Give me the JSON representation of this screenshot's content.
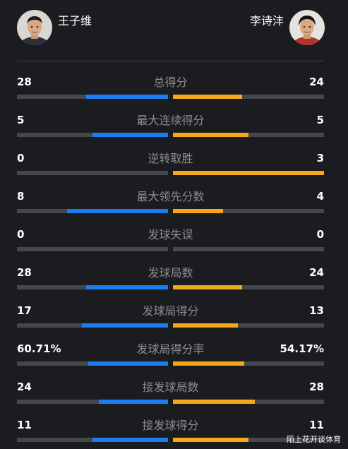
{
  "players": {
    "left": {
      "name": "王子维"
    },
    "right": {
      "name": "李诗沣"
    }
  },
  "colors": {
    "left_bar": "#1a7df2",
    "right_bar": "#f5a81c",
    "track": "#46474b",
    "background": "#1b1c1f"
  },
  "stats": [
    {
      "label": "总得分",
      "left": "28",
      "right": "24",
      "left_share": 0.54,
      "right_share": 0.46
    },
    {
      "label": "最大连续得分",
      "left": "5",
      "right": "5",
      "left_share": 0.5,
      "right_share": 0.5
    },
    {
      "label": "逆转取胜",
      "left": "0",
      "right": "3",
      "left_share": 0.0,
      "right_share": 1.0
    },
    {
      "label": "最大领先分数",
      "left": "8",
      "right": "4",
      "left_share": 0.67,
      "right_share": 0.33
    },
    {
      "label": "发球失误",
      "left": "0",
      "right": "0",
      "left_share": 0.0,
      "right_share": 0.0
    },
    {
      "label": "发球局数",
      "left": "28",
      "right": "24",
      "left_share": 0.54,
      "right_share": 0.46
    },
    {
      "label": "发球局得分",
      "left": "17",
      "right": "13",
      "left_share": 0.57,
      "right_share": 0.43
    },
    {
      "label": "发球局得分率",
      "left": "60.71%",
      "right": "54.17%",
      "left_share": 0.53,
      "right_share": 0.47
    },
    {
      "label": "接发球局数",
      "left": "24",
      "right": "28",
      "left_share": 0.46,
      "right_share": 0.54
    },
    {
      "label": "接发球得分",
      "left": "11",
      "right": "11",
      "left_share": 0.5,
      "right_share": 0.5
    }
  ],
  "watermark": "陌上花开谈体育"
}
